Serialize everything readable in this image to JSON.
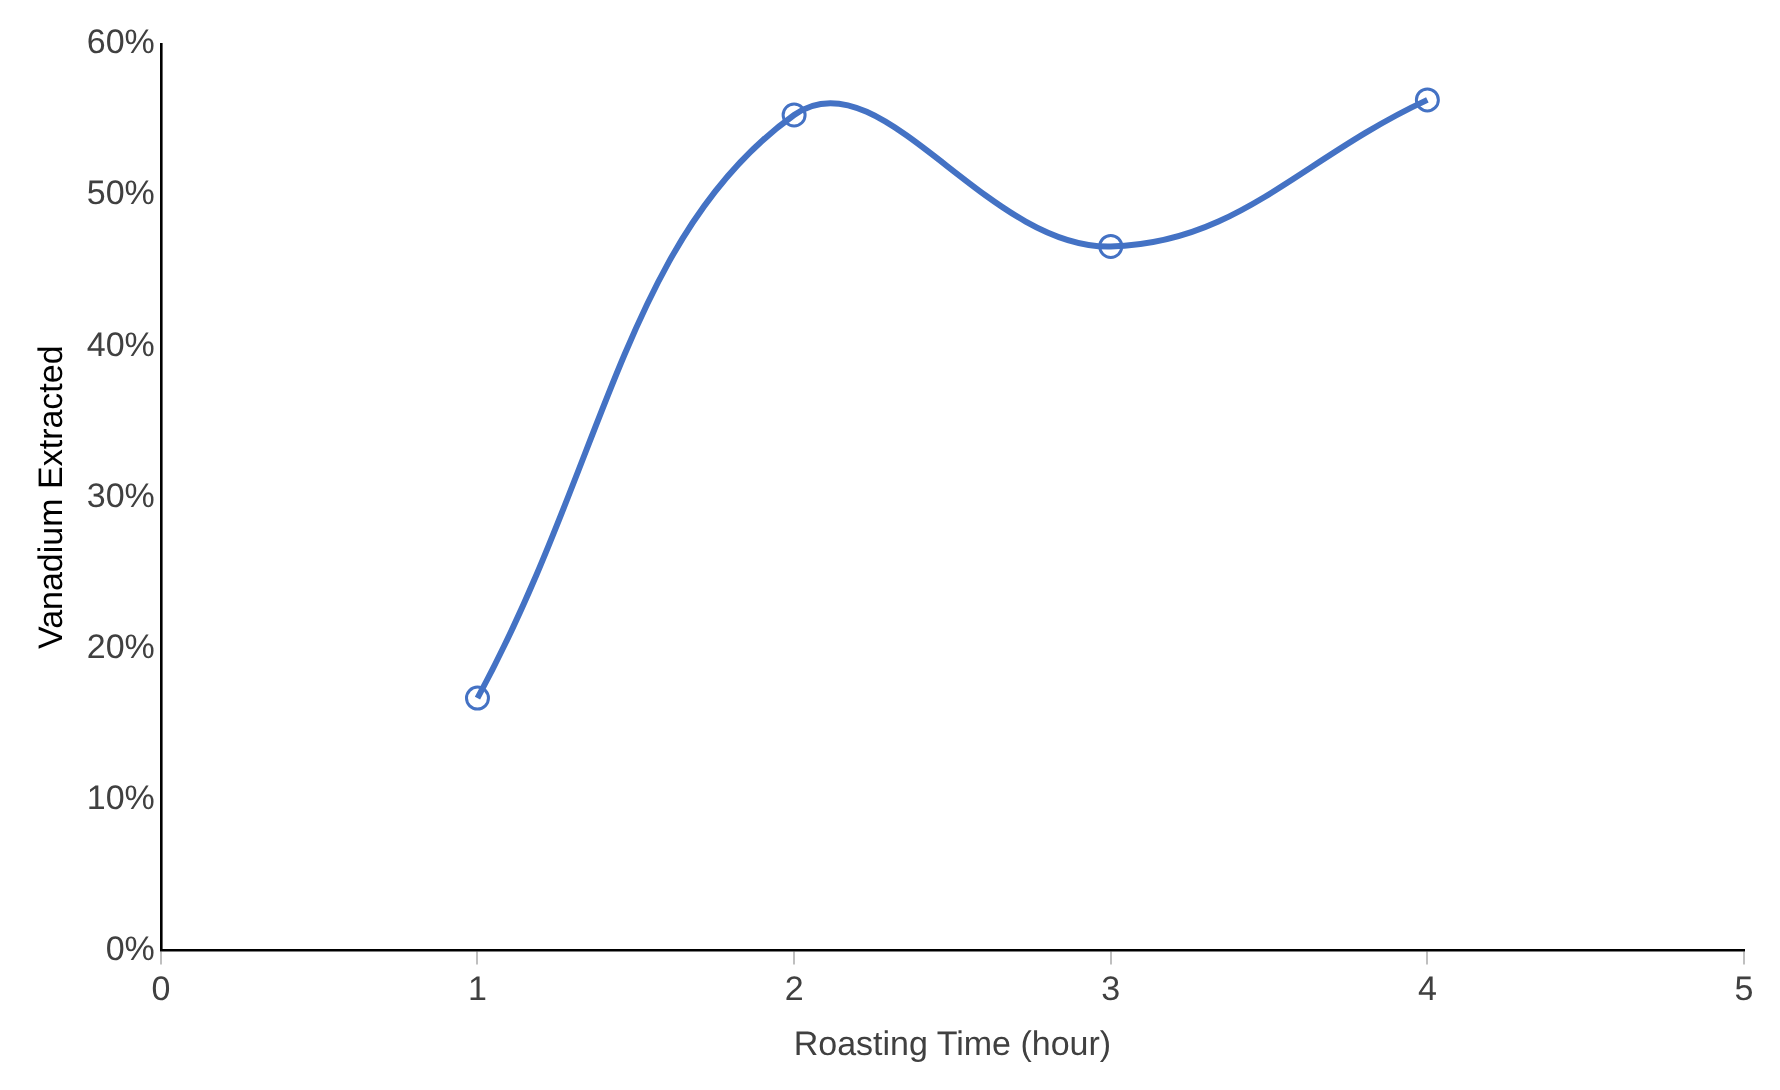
{
  "chart_data": {
    "type": "line",
    "xlabel": "Roasting Time (hour)",
    "ylabel": "Vanadium Extracted",
    "x": [
      1,
      2,
      3,
      4
    ],
    "series": [
      {
        "color": "#4472c4",
        "values": [
          16.7,
          55.3,
          46.6,
          56.3
        ]
      }
    ],
    "xlim": [
      0,
      5
    ],
    "xticks": [
      0,
      1,
      2,
      3,
      4,
      5
    ],
    "ylim": [
      0,
      60
    ],
    "yticks": [
      {
        "value": 0,
        "label": "0%"
      },
      {
        "value": 10,
        "label": "10%"
      },
      {
        "value": 20,
        "label": "20%"
      },
      {
        "value": 30,
        "label": "30%"
      },
      {
        "value": 40,
        "label": "40%"
      },
      {
        "value": 50,
        "label": "50%"
      },
      {
        "value": 60,
        "label": "60%"
      }
    ],
    "grid": false,
    "legend": false,
    "marker": "circle",
    "line_style": "solid"
  }
}
